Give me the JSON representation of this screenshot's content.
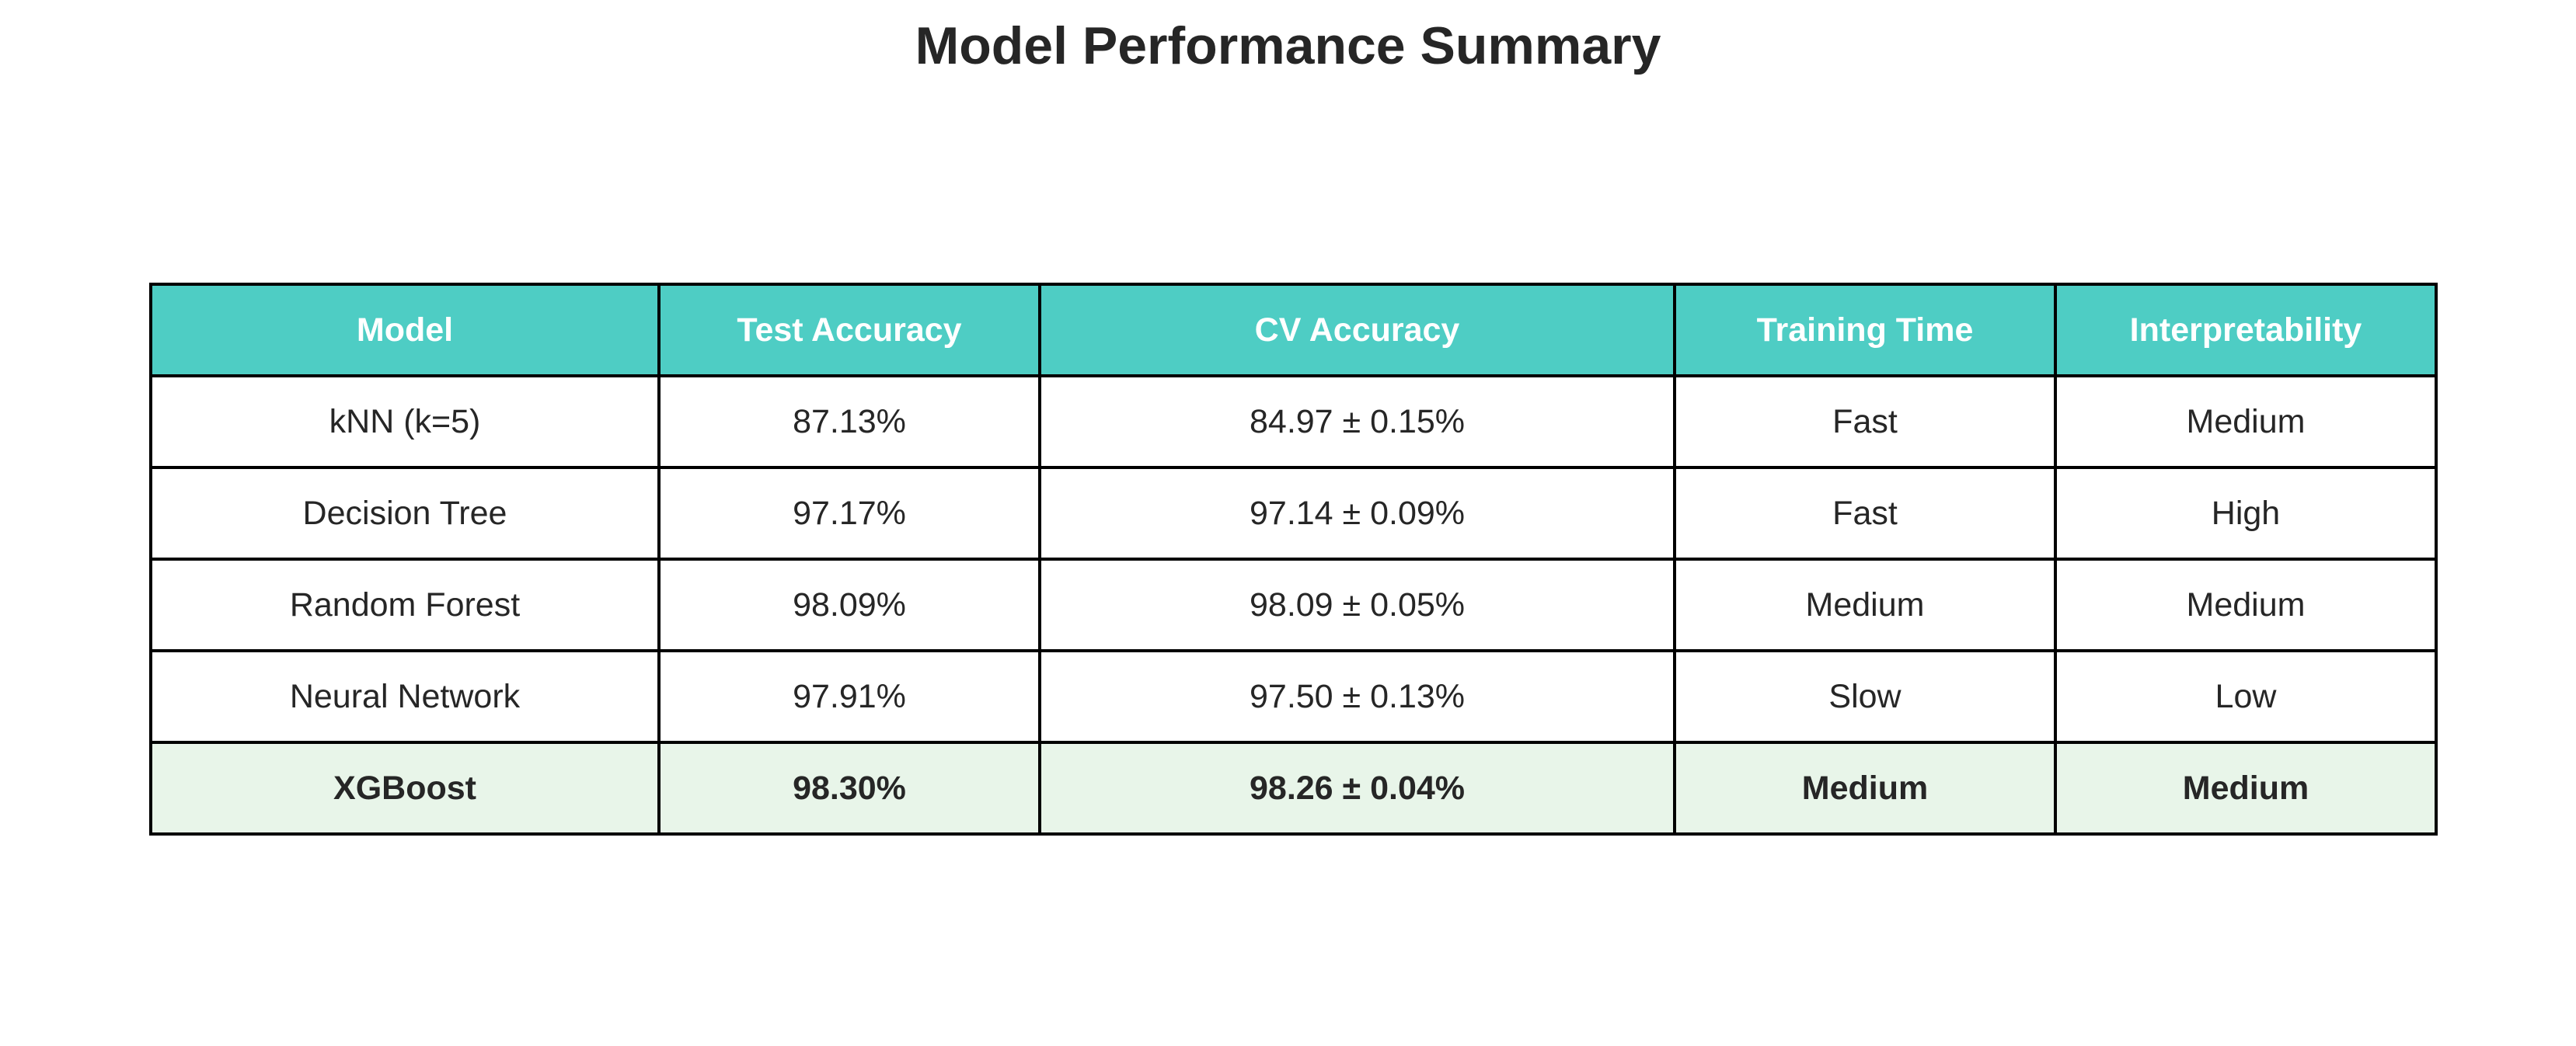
{
  "chart_data": {
    "type": "table",
    "title": "Model Performance Summary",
    "columns": [
      "Model",
      "Test Accuracy",
      "CV Accuracy",
      "Training Time",
      "Interpretability"
    ],
    "rows": [
      [
        "kNN (k=5)",
        "87.13%",
        "84.97 ± 0.15%",
        "Fast",
        "Medium"
      ],
      [
        "Decision Tree",
        "97.17%",
        "97.14 ± 0.09%",
        "Fast",
        "High"
      ],
      [
        "Random Forest",
        "98.09%",
        "98.09 ± 0.05%",
        "Medium",
        "Medium"
      ],
      [
        "Neural Network",
        "97.91%",
        "97.50 ± 0.13%",
        "Slow",
        "Low"
      ],
      [
        "XGBoost",
        "98.30%",
        "98.26 ± 0.04%",
        "Medium",
        "Medium"
      ]
    ],
    "highlighted_row": 4
  },
  "colors": {
    "header_background": "#4ECDC4",
    "header_text": "#FFFFFF",
    "highlight_row_background": "#E8F5E9",
    "border": "#000000",
    "text": "#262626"
  }
}
